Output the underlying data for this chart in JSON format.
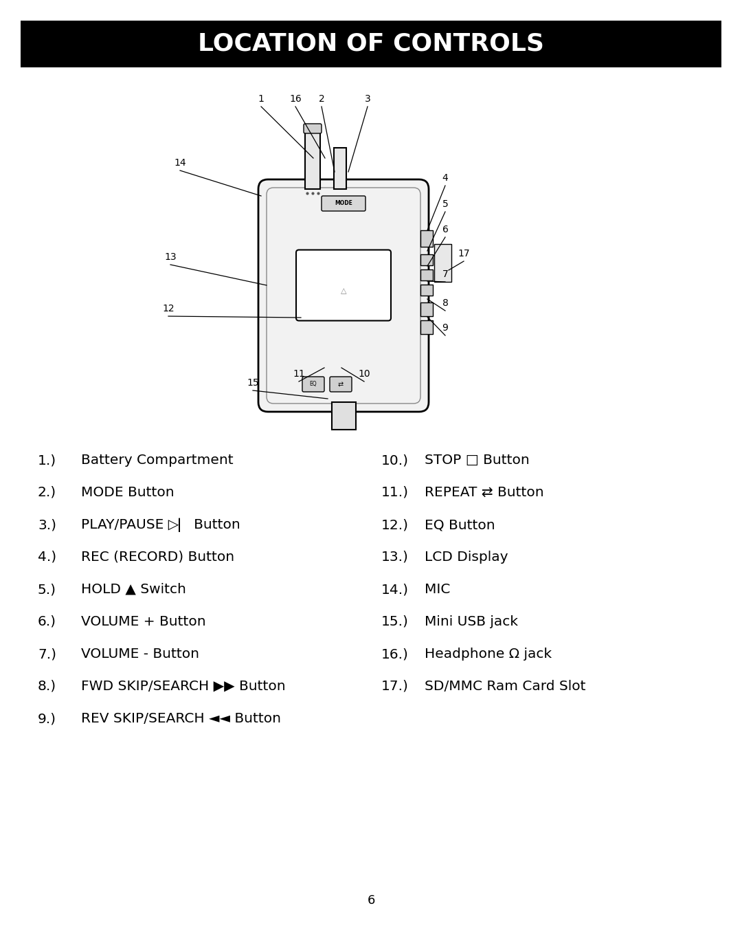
{
  "title": "LOCATION OF CONTROLS",
  "title_bg": "#000000",
  "title_color": "#ffffff",
  "title_fontsize": 26,
  "page_bg": "#ffffff",
  "page_number": "6",
  "left_col": [
    [
      "1.)",
      "Battery Compartment"
    ],
    [
      "2.)",
      "MODE Button"
    ],
    [
      "3.)",
      "PLAY/PAUSE ▷▏ Button"
    ],
    [
      "4.)",
      "REC (RECORD) Button"
    ],
    [
      "5.)",
      "HOLD ▲ Switch"
    ],
    [
      "6.)",
      "VOLUME + Button"
    ],
    [
      "7.)",
      "VOLUME - Button"
    ],
    [
      "8.)",
      "FWD SKIP/SEARCH ▶▶ Button"
    ],
    [
      "9.)",
      "REV SKIP/SEARCH ◄◄ Button"
    ]
  ],
  "right_col": [
    [
      "10.)",
      "STOP □ Button"
    ],
    [
      "11.)",
      "REPEAT ⇄ Button"
    ],
    [
      "12.)",
      "EQ Button"
    ],
    [
      "13.)",
      "LCD Display"
    ],
    [
      "14.)",
      "MIC"
    ],
    [
      "15.)",
      "Mini USB jack"
    ],
    [
      "16.)",
      "Headphone Ω jack"
    ],
    [
      "17.)",
      "SD/MMC Ram Card Slot"
    ]
  ],
  "item_fontsize": 14.5,
  "num_fontsize": 14.5
}
